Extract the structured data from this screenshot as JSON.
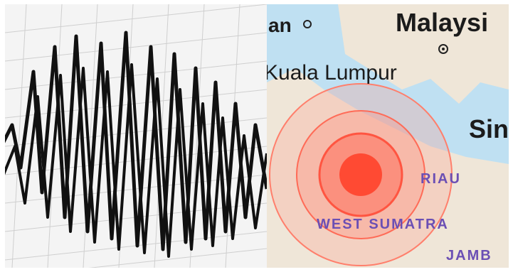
{
  "map": {
    "labels": {
      "city_partial": "an",
      "country": "Malaysi",
      "capital": "Kuala Lumpur",
      "city_partial_right": "Sin",
      "region_riau": "RIAU",
      "region_west_sumatra": "WEST SUMATRA",
      "region_jambi": "JAMB"
    },
    "colors": {
      "sea": "#bfe0f2",
      "land": "#efe6d8",
      "epicenter": "#ff4a33",
      "ring": "#ff8c7a",
      "region_label": "#6b4fb4"
    }
  },
  "seismogram": {
    "colors": {
      "paper": "#f4f4f4",
      "grid": "#cfcfcf",
      "trace": "#111111"
    }
  }
}
